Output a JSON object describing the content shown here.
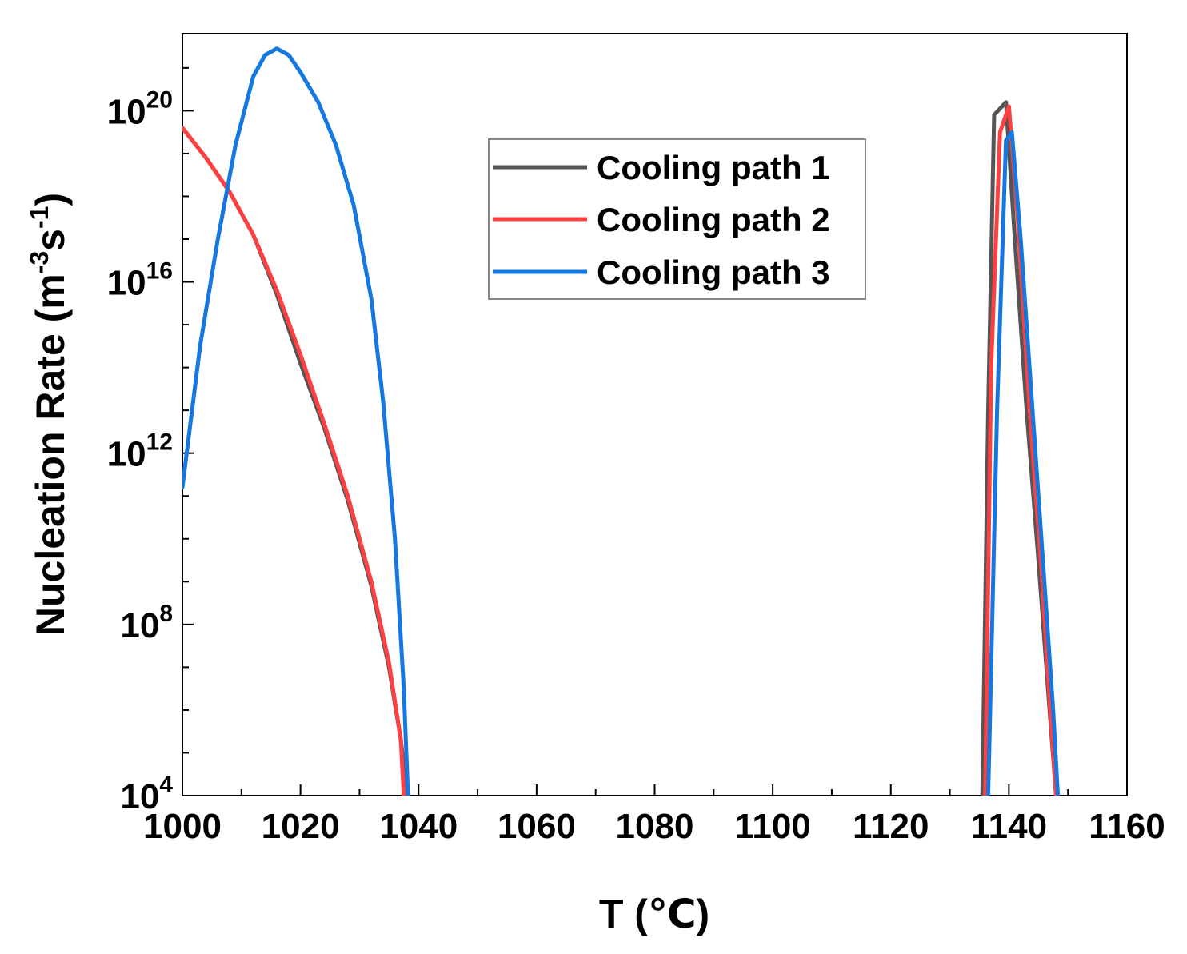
{
  "chart_data": {
    "type": "line",
    "title": "",
    "xlabel": "T (℃)",
    "ylabel_main": "Nucleation Rate (m",
    "ylabel_sup1": "-3",
    "ylabel_mid": "s",
    "ylabel_sup2": "-1",
    "ylabel_end": ")",
    "xlim": [
      1000,
      1160
    ],
    "ylim_log10": [
      4,
      21.8
    ],
    "xticks": [
      "1000",
      "1020",
      "1040",
      "1060",
      "1080",
      "1100",
      "1120",
      "1140",
      "1160"
    ],
    "yticks": [
      {
        "base": "10",
        "exp": "4",
        "log10": 4
      },
      {
        "base": "10",
        "exp": "8",
        "log10": 8
      },
      {
        "base": "10",
        "exp": "12",
        "log10": 12
      },
      {
        "base": "10",
        "exp": "16",
        "log10": 16
      },
      {
        "base": "10",
        "exp": "20",
        "log10": 20
      }
    ],
    "legend_position": "top-center",
    "series": [
      {
        "name": "Cooling path 1",
        "color": "#555555",
        "segments": [
          [
            [
              1000,
              19.6
            ],
            [
              1004,
              18.9
            ],
            [
              1008,
              18.1
            ],
            [
              1012,
              17.1
            ],
            [
              1016,
              15.7
            ],
            [
              1020,
              14.1
            ],
            [
              1024,
              12.6
            ],
            [
              1028,
              10.9
            ],
            [
              1032,
              8.9
            ],
            [
              1035,
              7.0
            ],
            [
              1037,
              5.3
            ],
            [
              1038,
              4.0
            ]
          ],
          [
            [
              1135.5,
              4.0
            ],
            [
              1136.5,
              13.0
            ],
            [
              1137.5,
              19.9
            ],
            [
              1139.5,
              20.2
            ],
            [
              1141,
              17.0
            ],
            [
              1143,
              13.0
            ],
            [
              1145,
              9.5
            ],
            [
              1147,
              5.8
            ],
            [
              1148,
              4.0
            ]
          ]
        ]
      },
      {
        "name": "Cooling path 2",
        "color": "#ff4040",
        "segments": [
          [
            [
              1000,
              19.6
            ],
            [
              1004,
              18.9
            ],
            [
              1008,
              18.1
            ],
            [
              1012,
              17.1
            ],
            [
              1016,
              15.8
            ],
            [
              1020,
              14.3
            ],
            [
              1024,
              12.7
            ],
            [
              1028,
              11.0
            ],
            [
              1032,
              9.0
            ],
            [
              1035,
              7.1
            ],
            [
              1037,
              5.3
            ],
            [
              1037.5,
              4.0
            ]
          ],
          [
            [
              1136,
              4.0
            ],
            [
              1137,
              14.0
            ],
            [
              1138.5,
              19.5
            ],
            [
              1140,
              20.1
            ],
            [
              1141.5,
              17.5
            ],
            [
              1143.5,
              13.0
            ],
            [
              1145.5,
              9.3
            ],
            [
              1147,
              6.0
            ],
            [
              1148,
              4.0
            ]
          ]
        ]
      },
      {
        "name": "Cooling path 3",
        "color": "#1478e0",
        "segments": [
          [
            [
              1000,
              11.2
            ],
            [
              1003,
              14.5
            ],
            [
              1006,
              17.0
            ],
            [
              1009,
              19.2
            ],
            [
              1012,
              20.8
            ],
            [
              1014,
              21.3
            ],
            [
              1016,
              21.45
            ],
            [
              1018,
              21.3
            ],
            [
              1020,
              20.9
            ],
            [
              1023,
              20.2
            ],
            [
              1026,
              19.2
            ],
            [
              1029,
              17.8
            ],
            [
              1032,
              15.6
            ],
            [
              1034,
              13.2
            ],
            [
              1036,
              10.0
            ],
            [
              1037.5,
              6.5
            ],
            [
              1038.2,
              4.0
            ]
          ],
          [
            [
              1136.5,
              4.0
            ],
            [
              1138,
              13.0
            ],
            [
              1139.5,
              19.3
            ],
            [
              1140.5,
              19.5
            ],
            [
              1142,
              17.0
            ],
            [
              1144,
              13.0
            ],
            [
              1146,
              9.0
            ],
            [
              1147.5,
              6.0
            ],
            [
              1148.3,
              4.0
            ]
          ]
        ]
      }
    ]
  }
}
